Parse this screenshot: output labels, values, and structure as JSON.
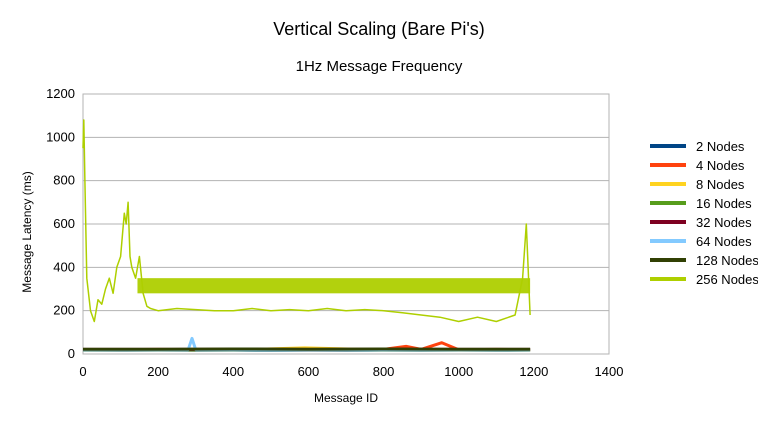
{
  "chart_data": {
    "type": "line",
    "title": "Vertical Scaling (Bare Pi's)",
    "subtitle": "1Hz Message Frequency",
    "xlabel": "Message ID",
    "ylabel": "Message Latency (ms)",
    "xlim": [
      0,
      1400
    ],
    "ylim": [
      0,
      1200
    ],
    "x_ticks": [
      0,
      200,
      400,
      600,
      800,
      1000,
      1200,
      1400
    ],
    "y_ticks": [
      0,
      200,
      400,
      600,
      800,
      1000,
      1200
    ],
    "grid": "horizontal",
    "legend_position": "right",
    "series": [
      {
        "name": "2 Nodes",
        "color": "#004586",
        "x": [
          0,
          100,
          200,
          300,
          400,
          500,
          600,
          700,
          800,
          900,
          1000,
          1100,
          1190
        ],
        "values": [
          18,
          17,
          18,
          17,
          18,
          17,
          18,
          17,
          18,
          17,
          18,
          17,
          18
        ]
      },
      {
        "name": "4 Nodes",
        "color": "#ff420e",
        "x": [
          0,
          100,
          200,
          300,
          400,
          500,
          600,
          700,
          800,
          860,
          900,
          955,
          1000,
          1100,
          1190
        ],
        "values": [
          20,
          20,
          21,
          20,
          20,
          21,
          20,
          20,
          21,
          35,
          21,
          52,
          20,
          21,
          20
        ]
      },
      {
        "name": "8 Nodes",
        "color": "#ffd320",
        "x": [
          0,
          200,
          400,
          590,
          800,
          1000,
          1190
        ],
        "values": [
          19,
          19,
          19,
          28,
          19,
          19,
          19
        ]
      },
      {
        "name": "16 Nodes",
        "color": "#579d1c",
        "x": [
          0,
          200,
          400,
          600,
          800,
          1000,
          1190
        ],
        "values": [
          19,
          20,
          19,
          20,
          19,
          20,
          19
        ]
      },
      {
        "name": "32 Nodes",
        "color": "#7e0021",
        "x": [
          0,
          200,
          400,
          600,
          800,
          1000,
          1190
        ],
        "values": [
          21,
          21,
          22,
          21,
          22,
          21,
          21
        ]
      },
      {
        "name": "64 Nodes",
        "color": "#83caff",
        "x": [
          0,
          200,
          280,
          290,
          300,
          400,
          600,
          800,
          1000,
          1190
        ],
        "values": [
          20,
          20,
          20,
          72,
          20,
          20,
          20,
          20,
          20,
          20
        ]
      },
      {
        "name": "128 Nodes",
        "color": "#314004",
        "x": [
          0,
          200,
          400,
          600,
          800,
          1000,
          1190
        ],
        "values": [
          22,
          22,
          23,
          22,
          23,
          22,
          22
        ]
      },
      {
        "name": "256 Nodes",
        "color": "#aecf00",
        "x": [
          0,
          2,
          5,
          10,
          20,
          30,
          40,
          50,
          60,
          70,
          80,
          90,
          100,
          110,
          115,
          120,
          125,
          130,
          140,
          150,
          160,
          170,
          180,
          200,
          250,
          300,
          350,
          400,
          450,
          500,
          550,
          600,
          650,
          700,
          750,
          800,
          850,
          900,
          950,
          1000,
          1050,
          1100,
          1150,
          1170,
          1180,
          1190
        ],
        "values": [
          950,
          1080,
          800,
          350,
          200,
          150,
          250,
          230,
          300,
          350,
          280,
          400,
          450,
          650,
          600,
          700,
          450,
          400,
          350,
          450,
          280,
          220,
          210,
          200,
          210,
          205,
          200,
          200,
          210,
          200,
          205,
          200,
          210,
          200,
          205,
          200,
          190,
          180,
          170,
          150,
          170,
          150,
          180,
          350,
          600,
          180
        ]
      }
    ],
    "band_256": {
      "x": [
        145,
        1190
      ],
      "low": 280,
      "high": 350
    }
  }
}
